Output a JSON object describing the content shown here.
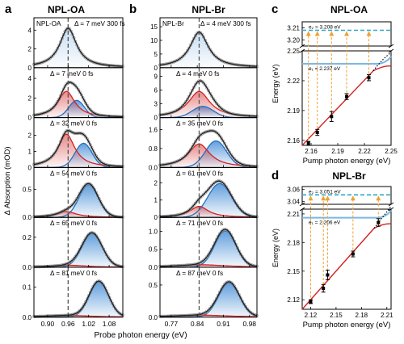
{
  "figure": {
    "panel_a": {
      "letter": "a",
      "title": "NPL-OA",
      "xlabel": "Probe photon energy (eV)",
      "ylabel": "Δ Absorption (mOD)",
      "xticks": [
        "0.90",
        "0.96",
        "1.02",
        "1.08"
      ],
      "subplots": [
        {
          "annotation": "Δ = 7 meV  300 fs",
          "prefix": "NPL-OA",
          "yticks": [
            "0",
            "2",
            "4"
          ],
          "ylim": [
            0,
            4.8
          ],
          "peak": 4.2,
          "fit": "single"
        },
        {
          "annotation": "Δ = 7 meV  0 fs",
          "yticks": [
            "0",
            "2",
            "4"
          ],
          "ylim": [
            0,
            4.6
          ],
          "peak": 3.6,
          "fit": "double"
        },
        {
          "annotation": "Δ = 32 meV  0 fs",
          "yticks": [
            "0",
            "1",
            "2"
          ],
          "ylim": [
            0,
            2.8
          ],
          "peak": 2.3,
          "fit": "double"
        },
        {
          "annotation": "Δ = 54 meV  0 fs",
          "yticks": [
            "0.0",
            "0.5"
          ],
          "ylim": [
            0,
            0.8
          ],
          "peak": 0.6,
          "fit": "double"
        },
        {
          "annotation": "Δ = 65 meV  0 fs",
          "yticks": [
            "0.0",
            "0.2"
          ],
          "ylim": [
            0,
            0.3
          ],
          "peak": 0.23,
          "fit": "double"
        },
        {
          "annotation": "Δ = 81 meV  0 fs",
          "yticks": [
            "0.0",
            "0.1"
          ],
          "ylim": [
            0,
            0.15
          ],
          "peak": 0.12,
          "fit": "double"
        }
      ]
    },
    "panel_b": {
      "letter": "b",
      "title": "NPL-Br",
      "xticks": [
        "0.77",
        "0.84",
        "0.91",
        "0.98"
      ],
      "subplots": [
        {
          "annotation": "Δ = 4 meV  300 fs",
          "prefix": "NPL-Br",
          "yticks": [
            "0",
            "5",
            "10",
            "15"
          ],
          "ylim": [
            0,
            16.5
          ],
          "peak": 13.0,
          "fit": "single"
        },
        {
          "annotation": "Δ = 4 meV  0 fs",
          "yticks": [
            "0",
            "3",
            "6",
            "9"
          ],
          "ylim": [
            0,
            9.8
          ],
          "peak": 8.0,
          "fit": "double"
        },
        {
          "annotation": "Δ = 35 meV  0 fs",
          "yticks": [
            "0.0",
            "0.8",
            "1.6"
          ],
          "ylim": [
            0,
            1.9
          ],
          "peak": 1.55,
          "fit": "double"
        },
        {
          "annotation": "Δ = 61 meV  0 fs",
          "yticks": [
            "0",
            "1",
            "2"
          ],
          "ylim": [
            0,
            2.6
          ],
          "peak": 2.1,
          "fit": "double"
        },
        {
          "annotation": "Δ = 71 meV  0 fs",
          "yticks": [
            "0.0",
            "0.5",
            "1.0"
          ],
          "ylim": [
            0,
            1.25
          ],
          "peak": 1.05,
          "fit": "double"
        },
        {
          "annotation": "Δ = 87 meV  0 fs",
          "yticks": [
            "0.0",
            "0.5"
          ],
          "ylim": [
            0,
            0.7
          ],
          "peak": 0.55,
          "fit": "double"
        }
      ]
    },
    "panel_c": {
      "letter": "c",
      "title": "NPL-OA",
      "xlabel": "Pump photon energy (eV)",
      "ylabel": "Energy (eV)",
      "xticks": [
        "2.16",
        "2.19",
        "2.22",
        "2.25"
      ],
      "yticks_upper": [
        "3.20",
        "3.21"
      ],
      "yticks_lower": [
        "2.16",
        "2.19",
        "2.22",
        "2.25"
      ],
      "e2_label": "e₂ = 3.208 eV",
      "e1_label": "e₁ = 2.237 eV"
    },
    "panel_d": {
      "letter": "d",
      "title": "NPL-Br",
      "xlabel": "Pump photon energy (eV)",
      "ylabel": "Energy (eV)",
      "xticks": [
        "2.12",
        "2.15",
        "2.18",
        "2.21"
      ],
      "yticks_upper": [
        "3.04",
        "3.06"
      ],
      "yticks_lower": [
        "2.12",
        "2.15",
        "2.18",
        "2.21"
      ],
      "e2_label": "e₂ = 3.051 eV",
      "e1_label": "e₁ = 2.206 eV"
    }
  },
  "chart_data": [
    {
      "type": "line",
      "title": "NPL-OA",
      "xlabel": "Probe photon energy (eV)",
      "ylabel": "Δ Absorption (mOD)",
      "xlim": [
        0.86,
        1.12
      ],
      "reference_line_x": 0.96,
      "series": [
        {
          "name": "Δ = 7 meV 300 fs",
          "peak_x": 0.96,
          "peak_y": 4.2
        },
        {
          "name": "Δ = 7 meV 0 fs",
          "peak_x": 0.96,
          "peak_y": 3.6
        },
        {
          "name": "Δ = 32 meV 0 fs",
          "peak_x": 0.97,
          "peak_y": 2.3
        },
        {
          "name": "Δ = 54 meV 0 fs",
          "peak_x": 1.02,
          "peak_y": 0.6
        },
        {
          "name": "Δ = 65 meV 0 fs",
          "peak_x": 1.03,
          "peak_y": 0.23
        },
        {
          "name": "Δ = 81 meV 0 fs",
          "peak_x": 1.05,
          "peak_y": 0.12
        }
      ]
    },
    {
      "type": "line",
      "title": "NPL-Br",
      "xlabel": "Probe photon energy (eV)",
      "xlim": [
        0.74,
        1.0
      ],
      "reference_line_x": 0.845,
      "series": [
        {
          "name": "Δ = 4 meV 300 fs",
          "peak_x": 0.845,
          "peak_y": 13.0
        },
        {
          "name": "Δ = 4 meV 0 fs",
          "peak_x": 0.845,
          "peak_y": 8.0
        },
        {
          "name": "Δ = 35 meV 0 fs",
          "peak_x": 0.86,
          "peak_y": 1.55
        },
        {
          "name": "Δ = 61 meV 0 fs",
          "peak_x": 0.9,
          "peak_y": 2.1
        },
        {
          "name": "Δ = 71 meV 0 fs",
          "peak_x": 0.915,
          "peak_y": 1.05
        },
        {
          "name": "Δ = 87 meV 0 fs",
          "peak_x": 0.925,
          "peak_y": 0.55
        }
      ]
    },
    {
      "type": "scatter",
      "title": "NPL-OA",
      "xlabel": "Pump photon energy (eV)",
      "ylabel": "Energy (eV)",
      "xlim": [
        2.15,
        2.25
      ],
      "ylim_lower": [
        2.155,
        2.25
      ],
      "ylim_upper": [
        3.195,
        3.215
      ],
      "points": [
        {
          "x": 2.157,
          "y": 2.157,
          "err": 0.002
        },
        {
          "x": 2.167,
          "y": 2.168,
          "err": 0.003
        },
        {
          "x": 2.183,
          "y": 2.184,
          "err": 0.005
        },
        {
          "x": 2.2,
          "y": 2.204,
          "err": 0.003
        },
        {
          "x": 2.225,
          "y": 2.223,
          "err": 0.003
        }
      ],
      "levels": [
        {
          "name": "e₂",
          "y": 3.208
        },
        {
          "name": "e₁",
          "y": 2.237
        }
      ]
    },
    {
      "type": "scatter",
      "title": "NPL-Br",
      "xlabel": "Pump photon energy (eV)",
      "ylabel": "Energy (eV)",
      "xlim": [
        2.11,
        2.215
      ],
      "ylim_lower": [
        2.11,
        2.215
      ],
      "ylim_upper": [
        3.035,
        3.065
      ],
      "points": [
        {
          "x": 2.12,
          "y": 2.118,
          "err": 0.002
        },
        {
          "x": 2.135,
          "y": 2.132,
          "err": 0.004
        },
        {
          "x": 2.14,
          "y": 2.146,
          "err": 0.005
        },
        {
          "x": 2.17,
          "y": 2.168,
          "err": 0.003
        },
        {
          "x": 2.2,
          "y": 2.201,
          "err": 0.004
        }
      ],
      "levels": [
        {
          "name": "e₂",
          "y": 3.051
        },
        {
          "name": "e₁",
          "y": 2.206
        }
      ]
    }
  ]
}
